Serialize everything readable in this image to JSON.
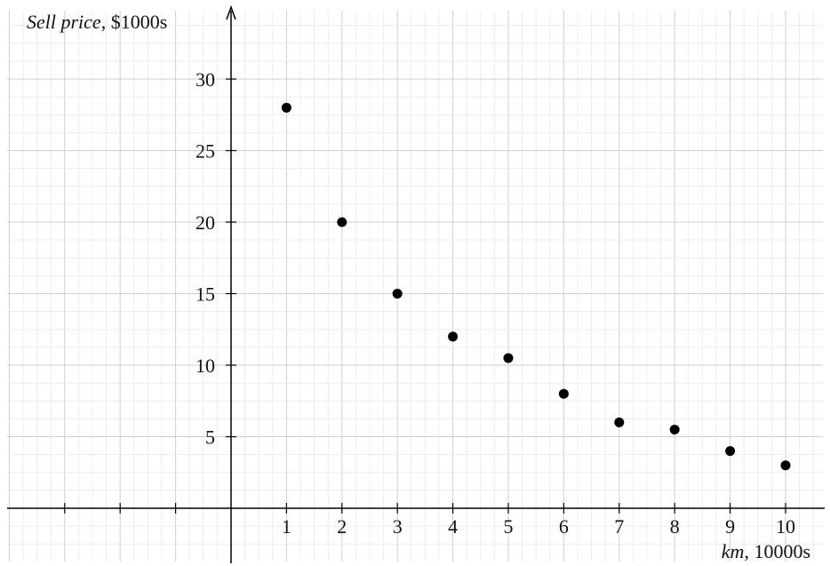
{
  "chart_data": {
    "type": "scatter",
    "xlabel_italic": "km",
    "xlabel_rest": ", 10000s",
    "ylabel_italic": "Sell price",
    "ylabel_rest": ", $1000s",
    "xlim": [
      -4,
      10.8
    ],
    "ylim": [
      -3.9,
      34.5
    ],
    "x_ticks": [
      1,
      2,
      3,
      4,
      5,
      6,
      7,
      8,
      9,
      10
    ],
    "y_ticks": [
      5,
      10,
      15,
      20,
      25,
      30
    ],
    "grid": true,
    "legend": "none",
    "x": [
      1,
      2,
      3,
      4,
      5,
      6,
      7,
      8,
      9,
      10
    ],
    "y": [
      28,
      20,
      15,
      12,
      10.5,
      8,
      6,
      5.5,
      4,
      3
    ]
  }
}
